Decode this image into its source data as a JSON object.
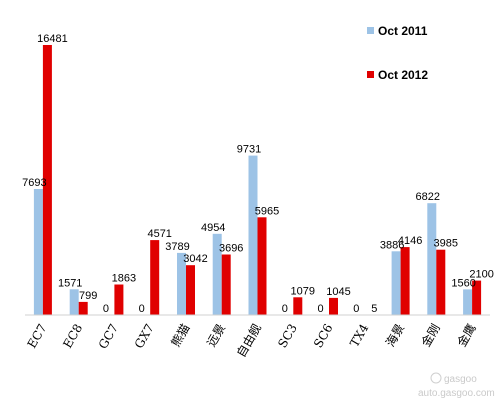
{
  "chart_data": {
    "type": "bar",
    "title": "",
    "xlabel": "",
    "ylabel": "",
    "ylim": [
      0,
      17000
    ],
    "grid": false,
    "legend_position": "top-right",
    "categories": [
      "EC7",
      "EC8",
      "GC7",
      "GX7",
      "熊猫",
      "远景",
      "自由舰",
      "SC3",
      "SC6",
      "TX4",
      "海景",
      "金刚",
      "金鹰"
    ],
    "series": [
      {
        "name": "Oct 2011",
        "color": "#9dc3e6",
        "values": [
          7693,
          1571,
          0,
          0,
          3789,
          4954,
          9731,
          0,
          0,
          0,
          3886,
          6822,
          1560
        ]
      },
      {
        "name": "Oct 2012",
        "color": "#e00000",
        "values": [
          16481,
          799,
          1863,
          4571,
          3042,
          3696,
          5965,
          1079,
          1045,
          5,
          4146,
          3985,
          2100
        ]
      }
    ]
  },
  "watermark": {
    "logo": "gasgoo",
    "url": "auto.gasgoo.com"
  }
}
